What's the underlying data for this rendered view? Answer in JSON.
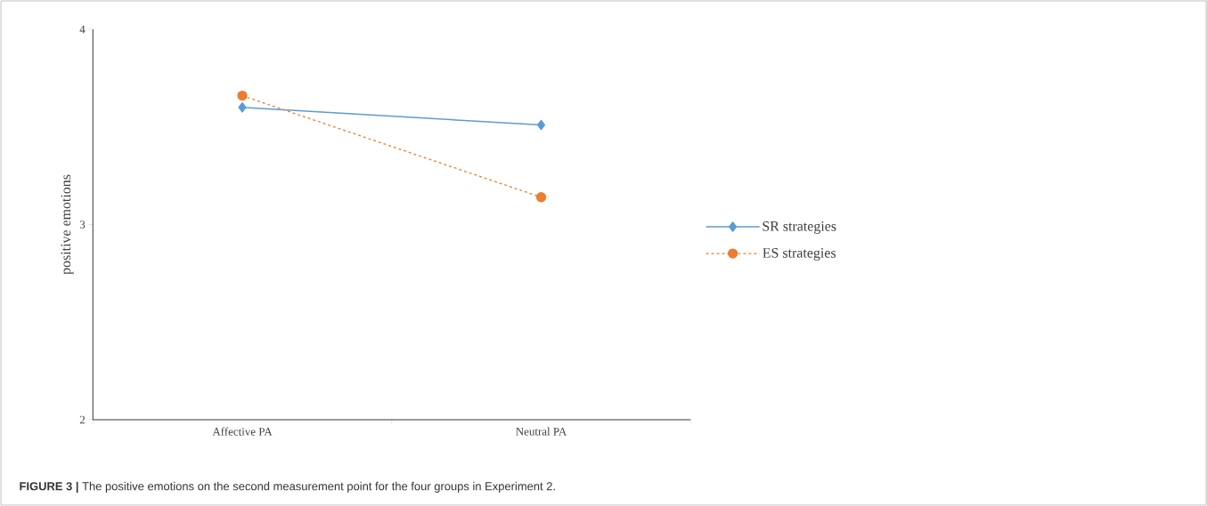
{
  "chart_data": {
    "type": "line",
    "categories": [
      "Affective PA",
      "Neutral PA"
    ],
    "ylabel": "positive emotions",
    "ylim": [
      2,
      4
    ],
    "yticks": [
      2,
      3,
      4
    ],
    "series": [
      {
        "name": "SR strategies",
        "color": "#5b9bd5",
        "values": [
          3.6,
          3.51
        ],
        "marker": "diamond",
        "line_style": "solid"
      },
      {
        "name": "ES strategies",
        "color": "#ed7d31",
        "values": [
          3.66,
          3.14
        ],
        "marker": "circle",
        "line_style": "dashed"
      }
    ],
    "legend": "right",
    "annotations": [
      "**FIGURE 3 |** The positive emotions on the second measurement point for the four groups in Experiment 2."
    ]
  }
}
